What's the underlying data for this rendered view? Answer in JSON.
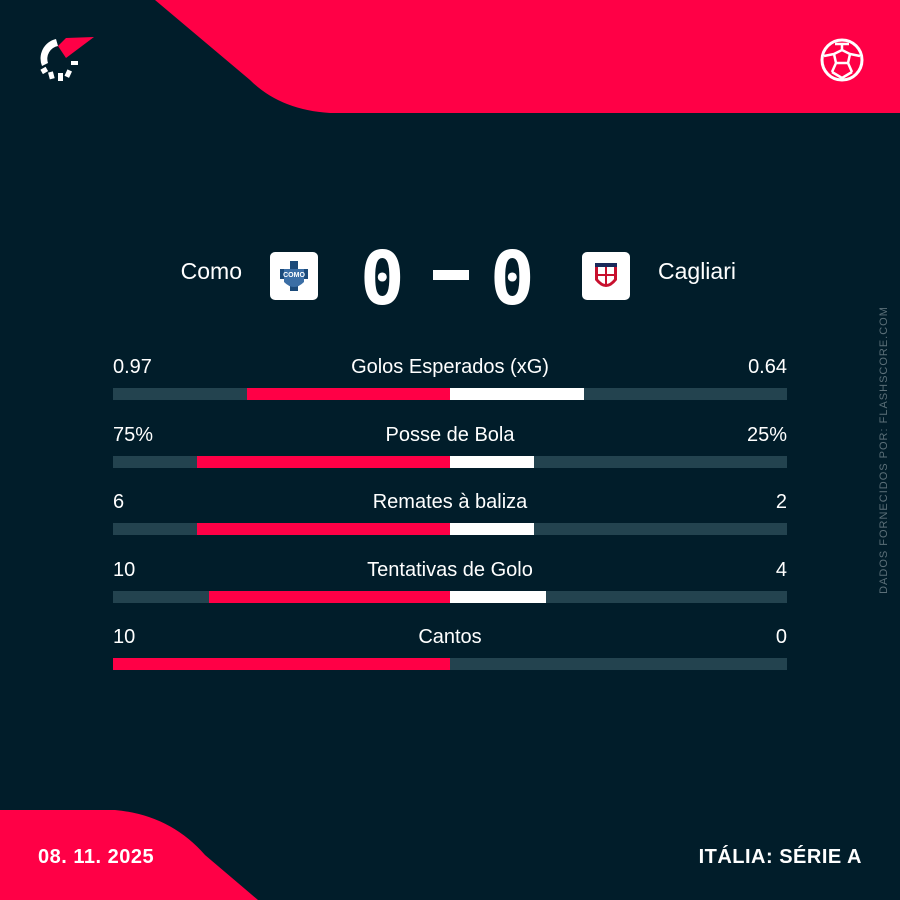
{
  "colors": {
    "background": "#011d2a",
    "accent": "#ff0046",
    "track": "#23434f",
    "away_bar": "#ffffff"
  },
  "header": {
    "logo": "flashscore-logo",
    "sport_icon": "football-icon"
  },
  "match": {
    "home_team": "Como",
    "away_team": "Cagliari",
    "home_score": "0",
    "separator": "-",
    "away_score": "0"
  },
  "stats": [
    {
      "label": "Golos Esperados (xG)",
      "home": "0.97",
      "away": "0.64",
      "home_value": 0.97,
      "away_value": 0.64
    },
    {
      "label": "Posse de Bola",
      "home": "75%",
      "away": "25%",
      "home_value": 75,
      "away_value": 25
    },
    {
      "label": "Remates à baliza",
      "home": "6",
      "away": "2",
      "home_value": 6,
      "away_value": 2
    },
    {
      "label": "Tentativas de Golo",
      "home": "10",
      "away": "4",
      "home_value": 10,
      "away_value": 4
    },
    {
      "label": "Cantos",
      "home": "10",
      "away": "0",
      "home_value": 10,
      "away_value": 0
    }
  ],
  "footer": {
    "date": "08. 11. 2025",
    "competition": "ITÁLIA: SÉRIE A"
  },
  "credit": "DADOS FORNECIDOS POR: FLASHSCORE.COM"
}
